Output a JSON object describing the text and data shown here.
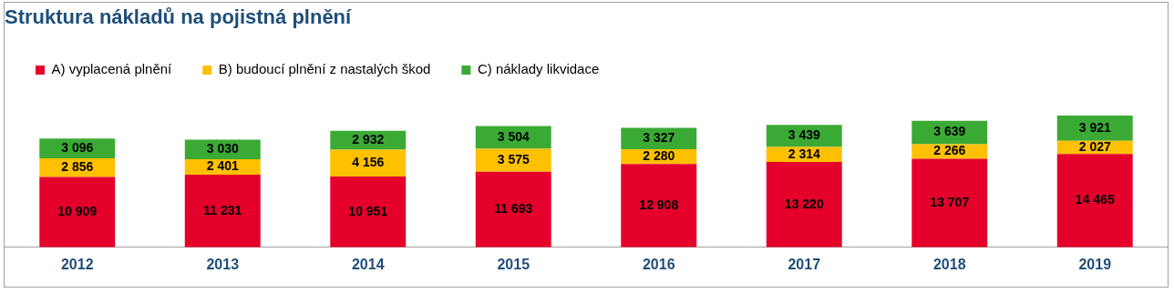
{
  "chart_data": {
    "type": "bar",
    "title": "Struktura nákladů na pojistná plnění",
    "categories": [
      "2012",
      "2013",
      "2014",
      "2015",
      "2016",
      "2017",
      "2018",
      "2019"
    ],
    "stacked": true,
    "legend": "top left",
    "grid": false,
    "tick_labels": "x",
    "series": [
      {
        "name": "A) vyplacená plnění",
        "color": "#e4002b",
        "values": [
          10909,
          11231,
          10951,
          11693,
          12908,
          13220,
          13707,
          14465
        ],
        "value_labels": [
          "10 909",
          "11 231",
          "10 951",
          "11 693",
          "12 908",
          "13 220",
          "13 707",
          "14 465"
        ]
      },
      {
        "name": "B) budoucí plnění z nastalých škod",
        "color": "#ffc000",
        "values": [
          2856,
          2401,
          4156,
          3575,
          2280,
          2314,
          2266,
          2027
        ],
        "value_labels": [
          "2 856",
          "2 401",
          "4 156",
          "3 575",
          "2 280",
          "2 314",
          "2 266",
          "2 027"
        ]
      },
      {
        "name": "C) náklady likvidace",
        "color": "#3aaa35",
        "values": [
          3096,
          3030,
          2932,
          3504,
          3327,
          3439,
          3639,
          3921
        ],
        "value_labels": [
          "3 096",
          "3 030",
          "2 932",
          "3 504",
          "3 327",
          "3 439",
          "3 639",
          "3 921"
        ]
      }
    ]
  }
}
